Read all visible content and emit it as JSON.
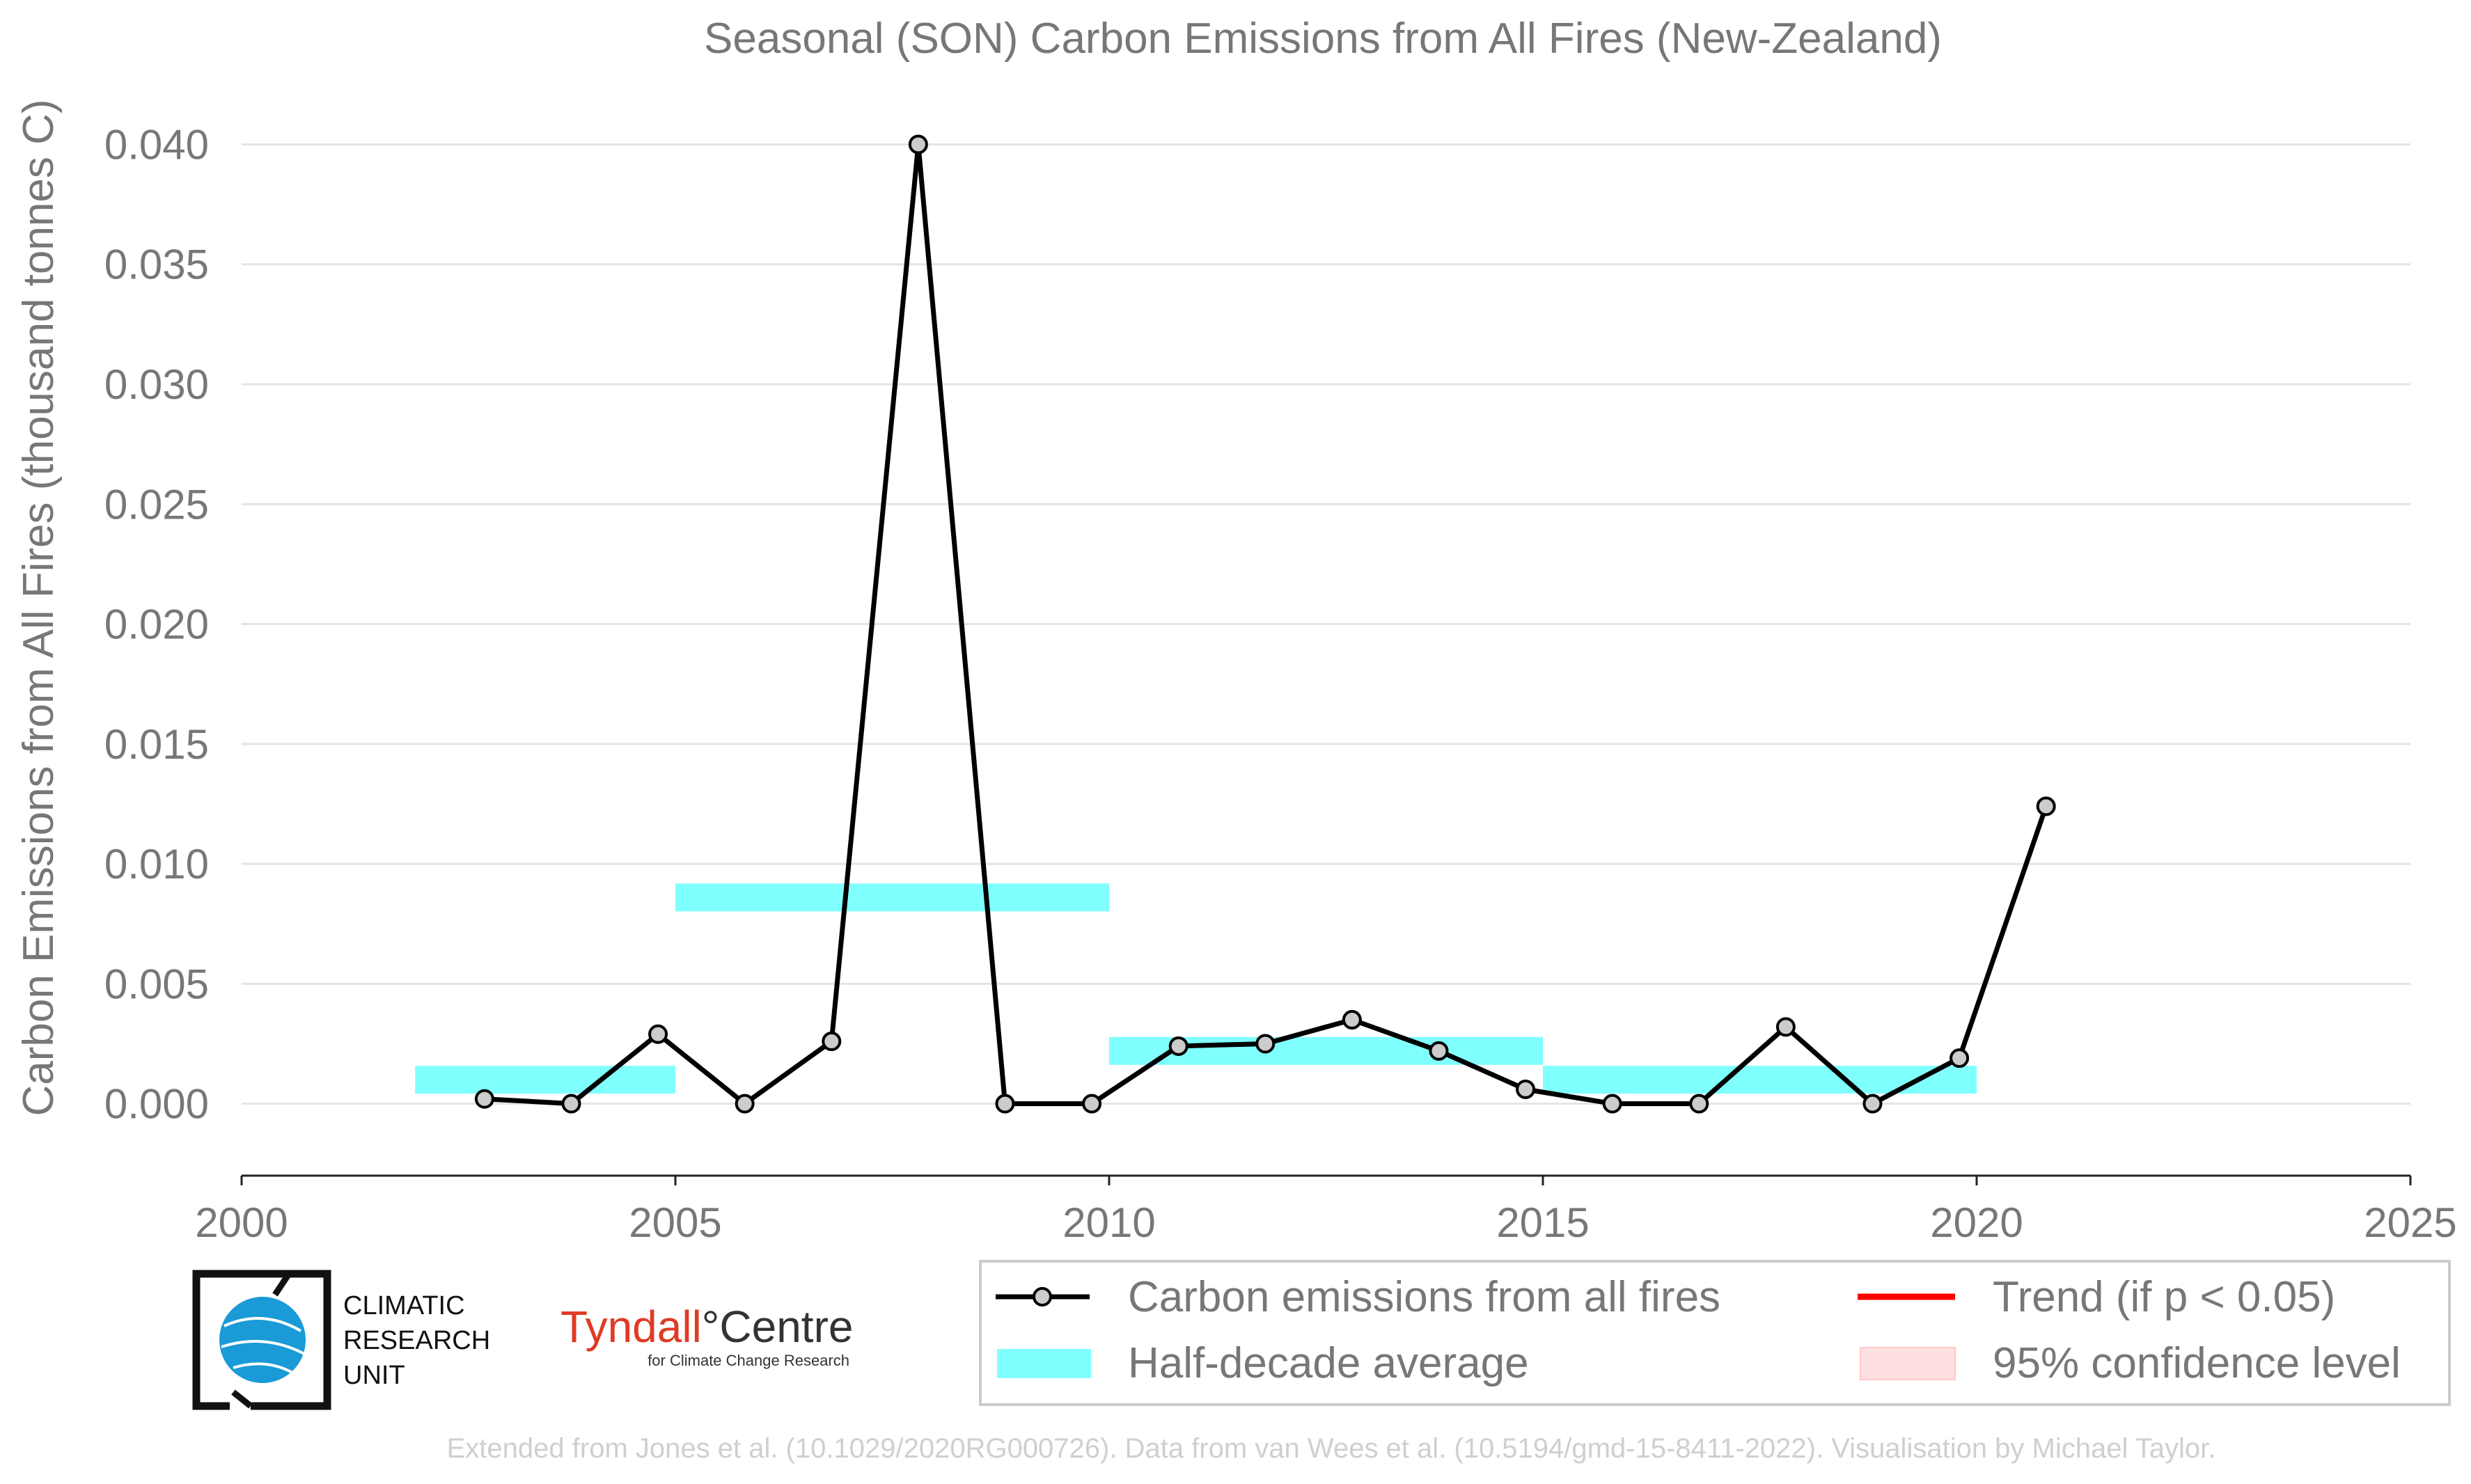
{
  "chart_data": {
    "type": "line",
    "title": "Seasonal (SON) Carbon Emissions from All Fires (New-Zealand)",
    "xlabel": "",
    "ylabel": "Carbon Emissions from All Fires (thousand tonnes C)",
    "xlim": [
      2000,
      2025
    ],
    "ylim": [
      -0.003,
      0.041
    ],
    "x_ticks": [
      2000,
      2005,
      2010,
      2015,
      2020,
      2025
    ],
    "x_tick_labels": [
      "2000",
      "2005",
      "2010",
      "2015",
      "2020",
      "2025"
    ],
    "y_ticks": [
      0.0,
      0.005,
      0.01,
      0.015,
      0.02,
      0.025,
      0.03,
      0.035,
      0.04
    ],
    "y_tick_labels": [
      "0.000",
      "0.005",
      "0.010",
      "0.015",
      "0.020",
      "0.025",
      "0.030",
      "0.035",
      "0.040"
    ],
    "grid": "horizontal",
    "legend_placement": "bottom",
    "series": [
      {
        "name": "Carbon emissions from all fires",
        "type": "line",
        "color": "#000000",
        "marker_fill": "#cccccc",
        "x": [
          2002.8,
          2003.8,
          2004.8,
          2005.8,
          2006.8,
          2007.8,
          2008.8,
          2009.8,
          2010.8,
          2011.8,
          2012.8,
          2013.8,
          2014.8,
          2015.8,
          2016.8,
          2017.8,
          2018.8,
          2019.8,
          2020.8
        ],
        "values": [
          0.0002,
          0.0,
          0.0029,
          0.0,
          0.0026,
          0.04,
          0.0,
          0.0,
          0.0024,
          0.0025,
          0.0035,
          0.0022,
          0.0006,
          0.0,
          0.0,
          0.0032,
          0.0,
          0.0019,
          0.0124
        ]
      },
      {
        "name": "Half-decade average",
        "type": "step",
        "color": "#80ffff",
        "segments": [
          {
            "x0": 2002,
            "x1": 2005,
            "value": 0.001
          },
          {
            "x0": 2005,
            "x1": 2010,
            "value": 0.0086
          },
          {
            "x0": 2010,
            "x1": 2015,
            "value": 0.0022
          },
          {
            "x0": 2015,
            "x1": 2020,
            "value": 0.001
          }
        ]
      },
      {
        "name": "Trend (if p < 0.05)",
        "type": "line",
        "color": "#ff0000",
        "values": []
      },
      {
        "name": "95% confidence level",
        "type": "area",
        "color": "#ffdddd",
        "values": []
      }
    ]
  },
  "logos": {
    "cru_lines": [
      "CLIMATIC",
      "RESEARCH",
      "UNIT"
    ],
    "tyndall_name_a": "Tyndall",
    "tyndall_degree": "°",
    "tyndall_name_b": "Centre",
    "tyndall_sub": "for Climate Change Research"
  },
  "footer": "Extended from Jones et al. (10.1029/2020RG000726). Data from van Wees et al. (10.5194/gmd-15-8411-2022). Visualisation by Michael Taylor."
}
